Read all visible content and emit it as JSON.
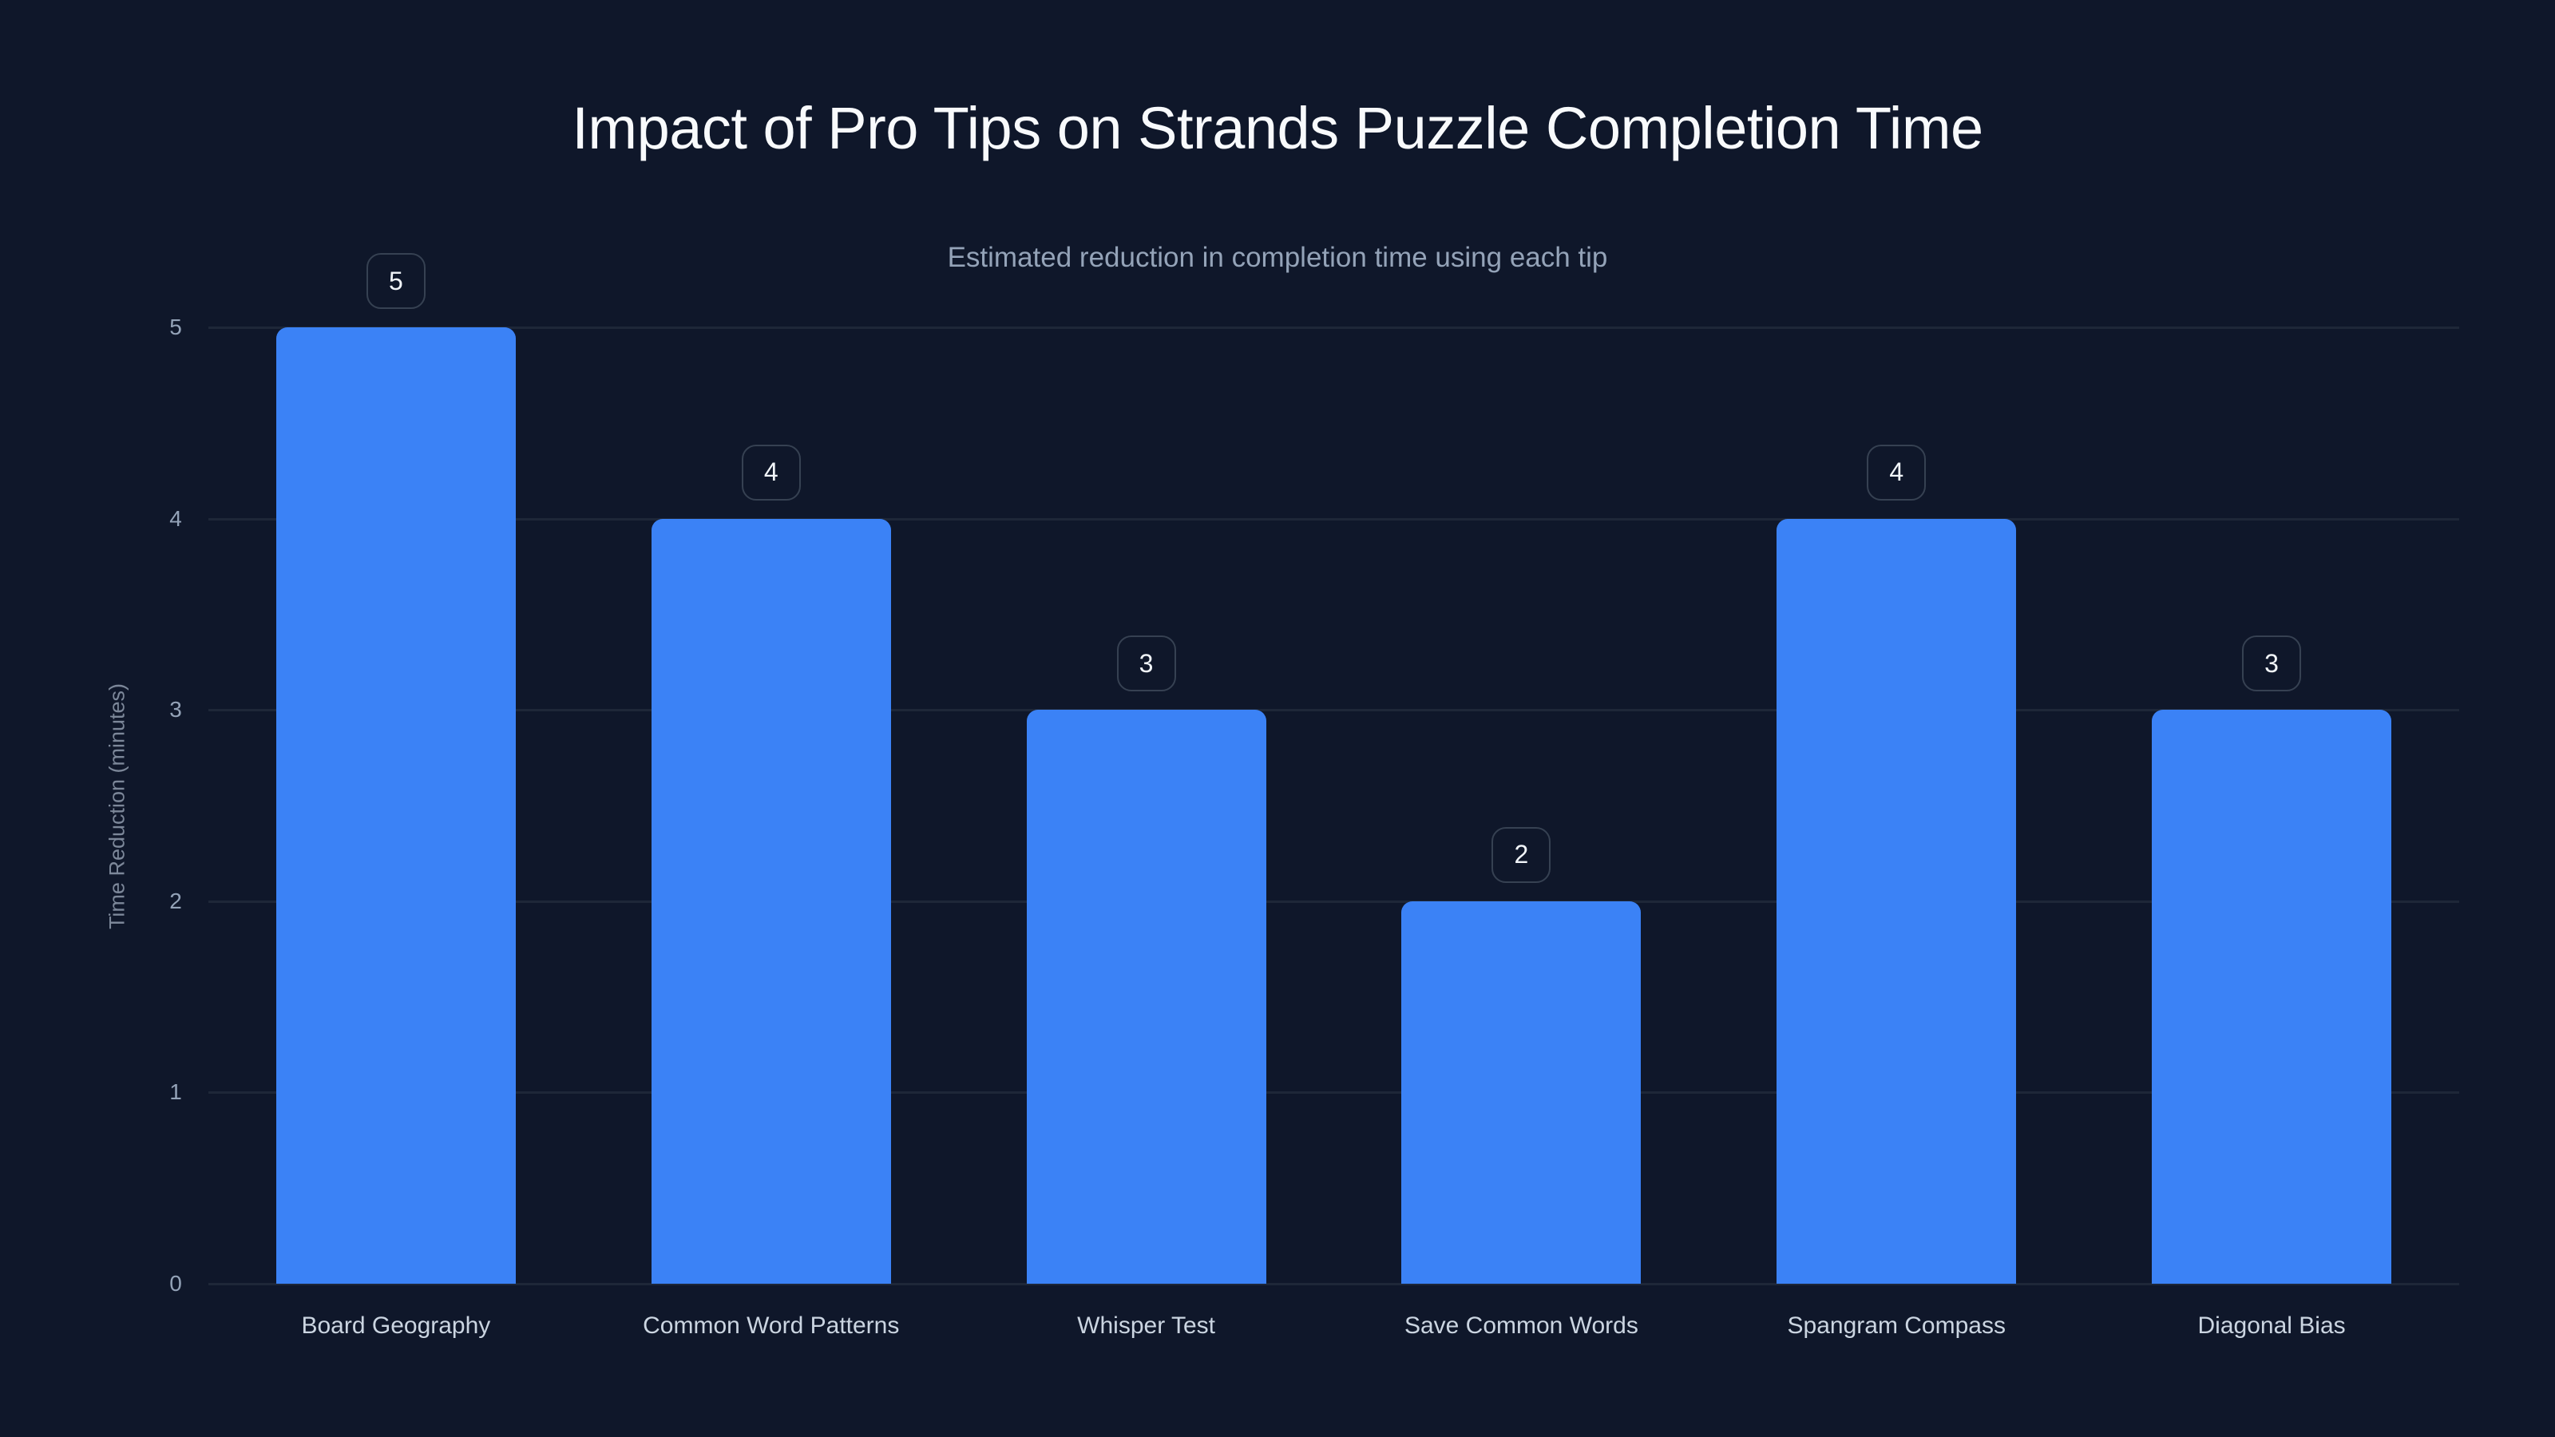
{
  "chart": {
    "title": "Impact of Pro Tips on Strands Puzzle Completion Time",
    "subtitle": "Estimated reduction in completion time using each tip",
    "ylabel": "Time Reduction (minutes)",
    "yticks": [
      "0",
      "1",
      "2",
      "3",
      "4",
      "5"
    ],
    "bars": [
      {
        "label": "Board Geography",
        "value": "5"
      },
      {
        "label": "Common Word Patterns",
        "value": "4"
      },
      {
        "label": "Whisper Test",
        "value": "3"
      },
      {
        "label": "Save Common Words",
        "value": "2"
      },
      {
        "label": "Spangram Compass",
        "value": "4"
      },
      {
        "label": "Diagonal Bias",
        "value": "3"
      }
    ],
    "colors": {
      "bar": "#3b82f6",
      "background": "#0f172a",
      "grid": "#1e2738"
    }
  },
  "chart_data": {
    "type": "bar",
    "title": "Impact of Pro Tips on Strands Puzzle Completion Time",
    "subtitle": "Estimated reduction in completion time using each tip",
    "categories": [
      "Board Geography",
      "Common Word Patterns",
      "Whisper Test",
      "Save Common Words",
      "Spangram Compass",
      "Diagonal Bias"
    ],
    "values": [
      5,
      4,
      3,
      2,
      4,
      3
    ],
    "xlabel": "",
    "ylabel": "Time Reduction (minutes)",
    "ylim": [
      0,
      5
    ],
    "yticks": [
      0,
      1,
      2,
      3,
      4,
      5
    ],
    "grid": true,
    "data_labels": true,
    "legend": null
  }
}
